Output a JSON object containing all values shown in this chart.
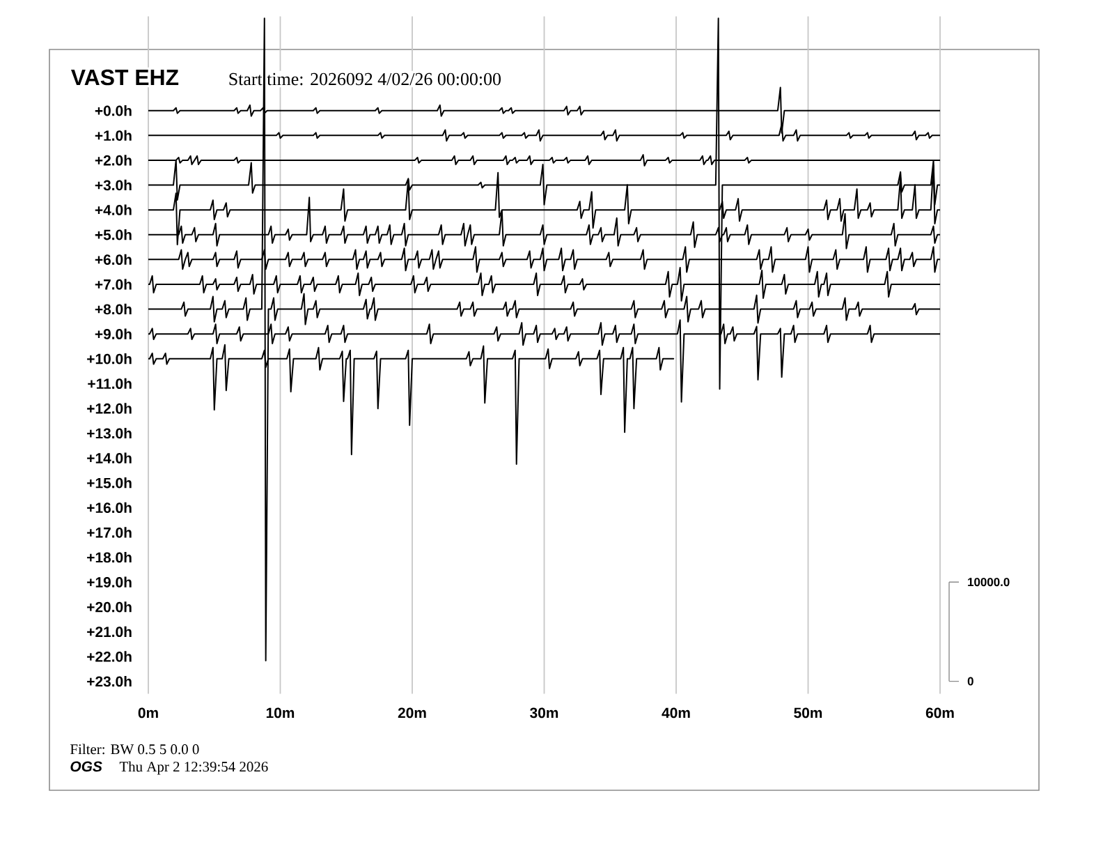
{
  "chart_data": {
    "type": "line",
    "title": "VAST EHZ",
    "subtitle": "Start time: 2026092  4/02/26 00:00:00",
    "annotations": [
      "Filter: BW 0.5 5 0.0 0",
      "OGS",
      "Thu Apr  2 12:39:54 2026"
    ],
    "xlim": [
      0,
      60
    ],
    "xticks": [
      {
        "value": 0,
        "label": "0m"
      },
      {
        "value": 10,
        "label": "10m"
      },
      {
        "value": 20,
        "label": "20m"
      },
      {
        "value": 30,
        "label": "30m"
      },
      {
        "value": 40,
        "label": "40m"
      },
      {
        "value": 50,
        "label": "50m"
      },
      {
        "value": 60,
        "label": "60m"
      }
    ],
    "ylim": [
      23.5,
      -3.8
    ],
    "yticks": [
      {
        "value": 0,
        "label": "+0.0h"
      },
      {
        "value": 1,
        "label": "+1.0h"
      },
      {
        "value": 2,
        "label": "+2.0h"
      },
      {
        "value": 3,
        "label": "+3.0h"
      },
      {
        "value": 4,
        "label": "+4.0h"
      },
      {
        "value": 5,
        "label": "+5.0h"
      },
      {
        "value": 6,
        "label": "+6.0h"
      },
      {
        "value": 7,
        "label": "+7.0h"
      },
      {
        "value": 8,
        "label": "+8.0h"
      },
      {
        "value": 9,
        "label": "+9.0h"
      },
      {
        "value": 10,
        "label": "+10.0h"
      },
      {
        "value": 11,
        "label": "+11.0h"
      },
      {
        "value": 12,
        "label": "+12.0h"
      },
      {
        "value": 13,
        "label": "+13.0h"
      },
      {
        "value": 14,
        "label": "+14.0h"
      },
      {
        "value": 15,
        "label": "+15.0h"
      },
      {
        "value": 16,
        "label": "+16.0h"
      },
      {
        "value": 17,
        "label": "+17.0h"
      },
      {
        "value": 18,
        "label": "+18.0h"
      },
      {
        "value": 19,
        "label": "+19.0h"
      },
      {
        "value": 20,
        "label": "+20.0h"
      },
      {
        "value": 21,
        "label": "+21.0h"
      },
      {
        "value": 22,
        "label": "+22.0h"
      },
      {
        "value": 23,
        "label": "+23.0h"
      }
    ],
    "y2lim": [
      -1250,
      67000
    ],
    "y2ticks": [
      0,
      {
        "value": 10000,
        "label": "10000.0"
      }
    ],
    "grid": "x",
    "marker": "none",
    "line_style": "solid",
    "series": [
      {
        "color": "#000000",
        "x": [
          0,
          1.9,
          2.1,
          2.2,
          2.4,
          6.5,
          6.7,
          6.8,
          7.0,
          7.5,
          7.7,
          7.8,
          8.0,
          8.5,
          8.7,
          8.8,
          9.0,
          12.5,
          12.7,
          12.8,
          13.0,
          17.2,
          17.4,
          17.5,
          17.7,
          21.9,
          22.1,
          22.2,
          22.4,
          26.6,
          26.8,
          26.9,
          27.1,
          27.3,
          27.5,
          27.6,
          27.8,
          31.5,
          31.7,
          31.8,
          32.0,
          32.5,
          32.7,
          32.8,
          33.0,
          47.7,
          47.9,
          48.0,
          48.2,
          60
        ],
        "values": [
          0,
          0,
          -0.11,
          0.11,
          0,
          0,
          -0.11,
          0.11,
          0,
          0,
          -0.22,
          0.22,
          0,
          0,
          -0.11,
          0.11,
          0,
          0,
          -0.11,
          0.11,
          0,
          0,
          -0.11,
          0.11,
          0,
          0,
          -0.22,
          0.22,
          0,
          0,
          -0.11,
          0.11,
          0,
          0,
          -0.11,
          0.11,
          0,
          0,
          -0.17,
          0.17,
          0,
          0,
          -0.17,
          0.17,
          0,
          0,
          -0.93,
          0.9,
          0,
          0
        ]
      },
      {
        "color": "#000000",
        "x": [
          0,
          9.7,
          9.9,
          10.0,
          10.2,
          12.5,
          12.7,
          12.8,
          13.0,
          17.4,
          17.6,
          17.7,
          17.9,
          22.3,
          22.5,
          22.6,
          22.8,
          23.7,
          23.9,
          24.0,
          24.2,
          26.6,
          26.8,
          26.9,
          27.1,
          28.3,
          28.5,
          28.6,
          28.8,
          29.4,
          29.6,
          29.7,
          29.9,
          34.3,
          34.5,
          34.6,
          34.8,
          35.2,
          35.4,
          35.5,
          35.7,
          40.3,
          40.5,
          40.6,
          40.8,
          43.8,
          44.0,
          44.1,
          44.3,
          47.8,
          48.0,
          48.1,
          48.3,
          48.9,
          49.1,
          49.2,
          49.4,
          52.9,
          53.1,
          53.2,
          53.4,
          54.3,
          54.5,
          54.6,
          54.8,
          57.9,
          58.1,
          58.2,
          58.4,
          58.9,
          59.1,
          59.2,
          59.4,
          60
        ],
        "values": [
          1,
          1,
          0.89,
          1.11,
          1,
          1,
          0.89,
          1.11,
          1,
          1,
          0.89,
          1.11,
          1,
          1,
          0.78,
          1.22,
          1,
          1,
          0.89,
          1.11,
          1,
          1,
          0.89,
          1.11,
          1,
          1,
          0.89,
          1.11,
          1,
          1,
          0.78,
          1.22,
          1,
          1,
          0.83,
          1.17,
          1,
          1,
          0.78,
          1.22,
          1,
          1,
          0.89,
          1.11,
          1,
          1,
          0.83,
          1.17,
          1,
          1,
          0.55,
          1.22,
          1,
          1,
          0.78,
          1.22,
          1,
          1,
          0.89,
          1.11,
          1,
          1,
          0.89,
          1.11,
          1,
          1,
          0.83,
          1.17,
          1,
          1,
          0.89,
          1.11,
          1,
          1
        ]
      },
      {
        "color": "#000000",
        "x": [
          0,
          2.1,
          2.3,
          2.4,
          2.6,
          3.0,
          3.2,
          3.3,
          3.5,
          3.5,
          3.7,
          3.8,
          4.0,
          6.5,
          6.7,
          6.8,
          7.0,
          20.2,
          20.4,
          20.5,
          20.7,
          23.0,
          23.2,
          23.3,
          23.5,
          24.4,
          24.6,
          24.7,
          24.9,
          26.9,
          27.1,
          27.2,
          27.4,
          27.6,
          27.8,
          27.9,
          28.1,
          28.7,
          28.9,
          29.0,
          29.2,
          30.4,
          30.6,
          30.7,
          30.9,
          31.5,
          31.7,
          31.8,
          32.0,
          33.1,
          33.3,
          33.4,
          33.6,
          37.3,
          37.5,
          37.6,
          37.8,
          39.2,
          39.4,
          39.5,
          39.7,
          41.8,
          42.0,
          42.1,
          42.3,
          42.4,
          42.6,
          42.7,
          42.9,
          45.2,
          45.4,
          45.5,
          45.7,
          60
        ],
        "values": [
          2,
          2,
          1.89,
          2.11,
          2,
          2,
          1.83,
          2.17,
          2,
          2,
          1.83,
          2.17,
          2,
          2,
          1.89,
          2.11,
          2,
          2,
          1.89,
          2.11,
          2,
          2,
          1.83,
          2.17,
          2,
          2,
          1.83,
          2.17,
          2,
          2,
          1.83,
          2.17,
          2,
          2,
          1.89,
          2.11,
          2,
          2,
          1.83,
          2.17,
          2,
          2,
          1.89,
          2.11,
          2,
          2,
          1.89,
          2.11,
          2,
          2,
          1.83,
          2.17,
          2,
          2,
          1.78,
          2.22,
          2,
          2,
          1.89,
          2.11,
          2,
          2,
          1.83,
          2.17,
          2,
          2,
          1.83,
          2.17,
          2,
          2,
          1.89,
          2.11,
          2,
          2
        ]
      },
      {
        "color": "#000000",
        "x": [
          0,
          1.9,
          2.1,
          2.2,
          2.4,
          7.6,
          7.8,
          7.9,
          8.1,
          19.5,
          19.7,
          19.8,
          20.0,
          25.0,
          25.2,
          25.3,
          25.5,
          29.7,
          29.9,
          30.0,
          30.2,
          43.0,
          43.2,
          43.3,
          43.5,
          56.8,
          57.0,
          57.1,
          57.3,
          59.3,
          59.5,
          59.6,
          59.8,
          60
        ],
        "values": [
          3,
          3,
          2.0,
          3.6,
          3,
          3,
          2.1,
          3.32,
          3,
          3,
          2.74,
          3.2,
          3,
          3,
          2.89,
          3.11,
          3,
          3,
          2.17,
          3.79,
          3,
          3,
          -3.72,
          11.22,
          3,
          3,
          2.47,
          3.28,
          3,
          3,
          2.01,
          3.79,
          3,
          3
        ]
      },
      {
        "color": "#000000",
        "x": [
          0,
          1.9,
          2.1,
          2.2,
          2.4,
          4.7,
          4.9,
          5.0,
          5.2,
          5.7,
          5.9,
          6.0,
          6.2,
          14.6,
          14.8,
          14.9,
          15.1,
          19.5,
          19.7,
          19.8,
          20.0,
          26.3,
          26.5,
          26.6,
          26.8,
          32.5,
          32.7,
          32.8,
          33.0,
          33.4,
          33.6,
          33.7,
          33.9,
          36.1,
          36.3,
          36.4,
          36.6,
          43.3,
          43.5,
          43.6,
          43.8,
          44.5,
          44.7,
          44.8,
          45.0,
          51.2,
          51.4,
          51.5,
          51.7,
          52.2,
          52.4,
          52.5,
          52.7,
          53.5,
          53.7,
          53.8,
          54.0,
          54.5,
          54.7,
          54.8,
          55.0,
          56.8,
          57.0,
          57.1,
          57.3,
          57.9,
          58.1,
          58.2,
          58.4,
          59.3,
          59.5,
          59.6,
          59.8,
          60
        ],
        "values": [
          4,
          4,
          3.33,
          5.4,
          4,
          4,
          3.61,
          4.39,
          4,
          4,
          3.72,
          4.28,
          4,
          4,
          3.16,
          4.45,
          4,
          4,
          2.78,
          4.39,
          4,
          4,
          2.5,
          4.3,
          4,
          4,
          3.66,
          4.34,
          4,
          4,
          3.27,
          4.73,
          4,
          4,
          2.99,
          4.56,
          4,
          4,
          3.66,
          4.34,
          4,
          4,
          3.55,
          4.45,
          4,
          4,
          3.61,
          4.39,
          4,
          4,
          3.55,
          4.45,
          4,
          4,
          3.16,
          4.34,
          4,
          4,
          3.72,
          4.28,
          4,
          4,
          2.71,
          4.34,
          4,
          4,
          2.99,
          4.34,
          4,
          4,
          2.2,
          4.56,
          4,
          4
        ]
      },
      {
        "color": "#000000",
        "x": [
          0,
          2.3,
          2.5,
          2.6,
          2.8,
          3.3,
          3.5,
          3.6,
          3.8,
          4.9,
          5.1,
          5.2,
          5.4,
          9.1,
          9.3,
          9.4,
          9.6,
          10.4,
          10.6,
          10.7,
          10.9,
          12.0,
          12.2,
          12.3,
          12.5,
          13.2,
          13.4,
          13.5,
          13.7,
          14.6,
          14.8,
          14.9,
          15.1,
          16.3,
          16.5,
          16.6,
          16.8,
          17.2,
          17.4,
          17.5,
          17.7,
          18.1,
          18.3,
          18.4,
          18.6,
          19.2,
          19.4,
          19.5,
          19.7,
          22.0,
          22.2,
          22.3,
          22.5,
          23.7,
          23.9,
          24.0,
          24.2,
          24.2,
          24.4,
          24.5,
          24.7,
          26.6,
          26.8,
          26.9,
          27.1,
          29.7,
          29.9,
          30.0,
          30.2,
          33.2,
          33.4,
          33.5,
          33.7,
          34.1,
          34.3,
          34.4,
          34.6,
          35.3,
          35.5,
          35.6,
          35.8,
          36.8,
          37.0,
          37.1,
          37.3,
          41.1,
          41.3,
          41.4,
          41.6,
          43.0,
          43.2,
          43.3,
          43.5,
          43.6,
          43.8,
          43.9,
          44.1,
          45.2,
          45.4,
          45.5,
          45.7,
          48.2,
          48.4,
          48.5,
          48.7,
          49.8,
          50.0,
          50.1,
          50.3,
          52.6,
          52.8,
          52.9,
          53.1,
          56.3,
          56.5,
          56.6,
          56.8,
          59.3,
          59.5,
          59.6,
          59.8,
          60
        ],
        "values": [
          5,
          5,
          4.66,
          5.34,
          5,
          5,
          4.72,
          5.28,
          5,
          5,
          4.55,
          5.45,
          5,
          5,
          4.66,
          5.34,
          5,
          5,
          4.78,
          5.22,
          5,
          5,
          3.5,
          5.28,
          5,
          5,
          4.66,
          5.34,
          5,
          5,
          4.66,
          5.34,
          5,
          5,
          4.66,
          5.34,
          5,
          5,
          4.66,
          5.34,
          5,
          5,
          4.61,
          5.39,
          5,
          5,
          4.55,
          5.45,
          5,
          5,
          4.61,
          5.39,
          5,
          5,
          4.55,
          5.45,
          5,
          5,
          4.61,
          5.39,
          5,
          5,
          4.04,
          5.45,
          5,
          5,
          4.61,
          5.39,
          5,
          5,
          4.61,
          5.39,
          5,
          5,
          4.72,
          5.28,
          5,
          5,
          4.33,
          5.45,
          5,
          5,
          4.72,
          5.28,
          5,
          5,
          4.49,
          5.51,
          5,
          5,
          4.72,
          5.28,
          5,
          5,
          4.72,
          5.28,
          5,
          5,
          4.61,
          5.39,
          5,
          5,
          4.72,
          5.28,
          5,
          5,
          4.78,
          5.22,
          5,
          5,
          4.16,
          5.56,
          5,
          5,
          4.55,
          5.45,
          5,
          5,
          4.66,
          5.34,
          5,
          5
        ]
      },
      {
        "color": "#000000",
        "x": [
          0,
          2.3,
          2.5,
          2.6,
          2.8,
          2.8,
          3.0,
          3.1,
          3.3,
          4.9,
          5.1,
          5.2,
          5.4,
          6.5,
          6.7,
          6.8,
          7.0,
          8.6,
          8.8,
          8.9,
          9.1,
          10.4,
          10.6,
          10.7,
          10.9,
          11.6,
          11.8,
          11.9,
          12.1,
          13.2,
          13.4,
          13.5,
          13.7,
          15.5,
          15.7,
          15.8,
          16.0,
          16.3,
          16.5,
          16.6,
          16.8,
          17.4,
          17.6,
          17.7,
          17.9,
          19.2,
          19.4,
          19.5,
          19.7,
          20.2,
          20.4,
          20.5,
          20.7,
          21.3,
          21.5,
          21.6,
          21.8,
          21.8,
          22.0,
          22.1,
          22.3,
          24.6,
          24.8,
          24.9,
          25.1,
          26.6,
          26.8,
          26.9,
          27.1,
          28.7,
          28.9,
          29.0,
          29.2,
          29.7,
          29.9,
          30.0,
          30.2,
          31.1,
          31.3,
          31.4,
          31.6,
          32.0,
          32.2,
          32.3,
          32.5,
          34.7,
          34.9,
          35.0,
          35.2,
          37.3,
          37.5,
          37.6,
          37.8,
          40.5,
          40.7,
          40.8,
          41.0,
          46.1,
          46.3,
          46.4,
          46.6,
          47.0,
          47.2,
          47.3,
          47.5,
          49.8,
          50.0,
          50.1,
          50.3,
          51.9,
          52.1,
          52.2,
          52.4,
          54.2,
          54.4,
          54.5,
          54.7,
          55.9,
          56.1,
          56.2,
          56.4,
          56.8,
          57.0,
          57.1,
          57.3,
          57.7,
          57.9,
          58.0,
          58.2,
          59.3,
          59.5,
          59.6,
          59.8,
          60
        ],
        "values": [
          6,
          6,
          5.61,
          6.39,
          6,
          6,
          5.72,
          6.28,
          6,
          6,
          5.72,
          6.28,
          6,
          6,
          5.66,
          6.34,
          6,
          6,
          5.61,
          6.39,
          6,
          6,
          5.72,
          6.28,
          6,
          6,
          5.72,
          6.28,
          6,
          6,
          5.72,
          6.28,
          6,
          6,
          5.61,
          6.39,
          6,
          6,
          5.66,
          6.34,
          6,
          6,
          5.72,
          6.28,
          6,
          6,
          5.55,
          6.45,
          6,
          6,
          5.66,
          6.34,
          6,
          6,
          5.61,
          6.39,
          6,
          6,
          5.66,
          6.34,
          6,
          6,
          5.49,
          6.51,
          6,
          6,
          5.72,
          6.28,
          6,
          6,
          5.66,
          6.34,
          6,
          6,
          5.55,
          6.45,
          6,
          6,
          5.55,
          6.45,
          6,
          6,
          5.61,
          6.39,
          6,
          6,
          5.72,
          6.28,
          6,
          6,
          5.61,
          6.39,
          6,
          6,
          5.49,
          6.51,
          6,
          6,
          5.61,
          6.39,
          6,
          6,
          5.49,
          6.51,
          6,
          6,
          5.49,
          6.51,
          6,
          6,
          5.61,
          6.39,
          6,
          6,
          5.49,
          6.51,
          6,
          6,
          5.55,
          6.45,
          6,
          6,
          5.55,
          6.45,
          6,
          6,
          5.72,
          6.28,
          6,
          6,
          5.49,
          6.51,
          6,
          6
        ]
      },
      {
        "color": "#000000",
        "x": [
          0,
          0.1,
          0.3,
          0.4,
          0.6,
          3.9,
          4.1,
          4.2,
          4.4,
          4.9,
          5.1,
          5.2,
          5.4,
          6.5,
          6.7,
          6.8,
          7.0,
          7.7,
          7.9,
          8.0,
          8.2,
          9.5,
          9.7,
          9.8,
          10.0,
          11.3,
          11.5,
          11.6,
          11.8,
          12.3,
          12.5,
          12.6,
          12.8,
          14.2,
          14.4,
          14.5,
          14.7,
          15.7,
          15.9,
          16.0,
          16.2,
          16.7,
          16.9,
          17.0,
          17.2,
          19.9,
          20.1,
          20.2,
          20.4,
          20.9,
          21.1,
          21.2,
          21.4,
          25.0,
          25.2,
          25.3,
          25.5,
          25.8,
          26.0,
          26.1,
          26.3,
          29.2,
          29.4,
          29.5,
          29.7,
          31.3,
          31.5,
          31.6,
          31.8,
          32.7,
          32.9,
          33.0,
          33.2,
          39.2,
          39.4,
          39.5,
          39.7,
          40.1,
          40.3,
          40.4,
          40.6,
          46.3,
          46.5,
          46.6,
          46.8,
          48.0,
          48.2,
          48.3,
          48.5,
          50.5,
          50.7,
          50.8,
          51.0,
          51.2,
          51.4,
          51.5,
          51.7,
          55.8,
          56.0,
          56.1,
          56.3,
          60
        ],
        "values": [
          7,
          7,
          6.66,
          7.34,
          7,
          7,
          6.66,
          7.34,
          7,
          7,
          6.78,
          7.22,
          7,
          7,
          6.72,
          7.28,
          7,
          7,
          6.61,
          7.39,
          7,
          7,
          6.66,
          7.34,
          7,
          7,
          6.66,
          7.34,
          7,
          7,
          6.72,
          7.28,
          7,
          7,
          6.66,
          7.34,
          7,
          7,
          6.55,
          7.45,
          7,
          7,
          6.72,
          7.28,
          7,
          7,
          6.66,
          7.34,
          7,
          7,
          6.72,
          7.28,
          7,
          7,
          6.55,
          7.45,
          7,
          7,
          6.66,
          7.34,
          7,
          7,
          6.55,
          7.45,
          7,
          7,
          6.66,
          7.34,
          7,
          7,
          6.78,
          7.22,
          7,
          7,
          6.49,
          7.51,
          7,
          7,
          6.33,
          7.67,
          7,
          7,
          6.44,
          7.56,
          7,
          7,
          6.61,
          7.39,
          7,
          7,
          6.49,
          7.51,
          7,
          7,
          6.55,
          7.45,
          7,
          7,
          6.49,
          7.51,
          7,
          7
        ]
      },
      {
        "color": "#000000",
        "x": [
          0,
          2.5,
          2.7,
          2.8,
          3.0,
          4.7,
          4.9,
          5.0,
          5.2,
          5.6,
          5.8,
          5.9,
          6.1,
          7.2,
          7.4,
          7.5,
          7.7,
          8.6,
          8.8,
          8.9,
          9.1,
          9.3,
          9.5,
          9.6,
          9.8,
          11.6,
          11.8,
          11.9,
          12.1,
          12.5,
          12.7,
          12.8,
          13.0,
          16.3,
          16.5,
          16.6,
          16.8,
          16.9,
          17.1,
          17.2,
          17.4,
          23.4,
          23.6,
          23.7,
          23.9,
          24.4,
          24.6,
          24.7,
          24.9,
          26.9,
          27.1,
          27.2,
          27.4,
          27.6,
          27.8,
          27.9,
          28.1,
          32.0,
          32.2,
          32.3,
          32.5,
          36.6,
          36.8,
          36.9,
          37.1,
          38.9,
          39.1,
          39.2,
          39.4,
          40.6,
          40.8,
          40.9,
          41.1,
          41.7,
          41.9,
          42.0,
          42.2,
          45.9,
          46.1,
          46.2,
          46.4,
          48.9,
          49.1,
          49.2,
          49.4,
          50.1,
          50.3,
          50.4,
          50.6,
          52.6,
          52.8,
          52.9,
          53.1,
          53.6,
          53.8,
          53.9,
          54.1,
          57.9,
          58.1,
          58.2,
          58.4,
          60
        ],
        "values": [
          8,
          8,
          7.72,
          8.28,
          8,
          8,
          7.49,
          8.51,
          8,
          8,
          7.66,
          8.34,
          8,
          8,
          7.55,
          8.45,
          8,
          8,
          -3.72,
          22.17,
          8,
          8,
          7.55,
          8.45,
          8,
          8,
          7.38,
          8.62,
          8,
          8,
          7.66,
          8.34,
          8,
          8,
          7.61,
          8.39,
          8,
          8,
          7.55,
          8.45,
          8,
          8,
          7.72,
          8.28,
          8,
          8,
          7.72,
          8.28,
          8,
          8,
          7.72,
          8.28,
          8,
          8,
          7.66,
          8.34,
          8,
          8,
          7.72,
          8.28,
          8,
          8,
          7.66,
          8.34,
          8,
          8,
          7.66,
          8.34,
          8,
          8,
          7.49,
          8.51,
          8,
          8,
          7.66,
          8.34,
          8,
          8,
          7.44,
          8.56,
          8,
          8,
          7.66,
          8.34,
          8,
          8,
          7.72,
          8.28,
          8,
          8,
          7.55,
          8.45,
          8,
          8,
          7.72,
          8.28,
          8,
          8,
          7.78,
          8.22,
          8,
          8
        ]
      },
      {
        "color": "#000000",
        "x": [
          0,
          0.1,
          0.3,
          0.4,
          0.6,
          3.0,
          3.2,
          3.3,
          3.5,
          4.9,
          5.1,
          5.2,
          5.4,
          6.7,
          6.9,
          7.0,
          7.2,
          9.1,
          9.3,
          9.4,
          9.6,
          10.4,
          10.6,
          10.7,
          10.9,
          13.4,
          13.6,
          13.7,
          13.9,
          14.6,
          14.8,
          14.9,
          15.1,
          21.1,
          21.3,
          21.4,
          21.6,
          26.2,
          26.4,
          26.5,
          26.7,
          28.1,
          28.3,
          28.4,
          28.6,
          29.2,
          29.4,
          29.5,
          29.7,
          30.6,
          30.8,
          30.9,
          31.1,
          31.5,
          31.7,
          31.8,
          32.0,
          34.1,
          34.3,
          34.4,
          34.6,
          35.2,
          35.4,
          35.5,
          35.7,
          36.6,
          36.8,
          36.9,
          37.1,
          40.1,
          40.3,
          40.4,
          40.6,
          43.4,
          43.6,
          43.7,
          43.9,
          44.1,
          44.3,
          44.4,
          44.6,
          45.9,
          46.1,
          46.2,
          46.4,
          47.7,
          47.9,
          48.0,
          48.2,
          48.7,
          48.9,
          49.0,
          49.2,
          51.2,
          51.4,
          51.5,
          51.7,
          54.5,
          54.7,
          54.8,
          55.0,
          60
        ],
        "values": [
          9,
          9,
          8.78,
          9.22,
          9,
          9,
          8.78,
          9.22,
          9,
          9,
          8.61,
          9.39,
          9,
          9,
          8.72,
          9.28,
          9,
          9,
          8.61,
          9.39,
          9,
          9,
          8.72,
          9.28,
          9,
          9,
          8.66,
          9.34,
          9,
          9,
          8.66,
          9.34,
          9,
          9,
          8.61,
          9.39,
          9,
          9,
          8.72,
          9.28,
          9,
          9,
          8.55,
          9.45,
          9,
          9,
          8.66,
          9.34,
          9,
          9,
          8.78,
          9.22,
          9,
          9,
          8.72,
          9.28,
          9,
          9,
          8.55,
          9.45,
          9,
          9,
          8.66,
          9.34,
          9,
          9,
          8.61,
          9.39,
          9,
          9,
          8.44,
          11.74,
          9,
          9,
          8.61,
          9.39,
          9,
          9,
          8.72,
          9.28,
          9,
          9,
          8.7,
          10.85,
          9,
          9,
          8.78,
          10.74,
          9,
          9,
          8.66,
          9.34,
          9,
          9,
          8.66,
          9.34,
          9,
          9,
          8.66,
          9.34,
          9,
          9
        ]
      },
      {
        "color": "#000000",
        "x": [
          0,
          0.1,
          0.3,
          0.4,
          0.6,
          1.1,
          1.3,
          1.4,
          1.6,
          4.7,
          4.9,
          5.0,
          5.2,
          5.6,
          5.8,
          5.9,
          6.1,
          8.6,
          8.8,
          8.9,
          9.1,
          10.5,
          10.7,
          10.8,
          11.0,
          12.7,
          12.9,
          13.0,
          13.2,
          14.5,
          14.7,
          14.8,
          15.0,
          15.1,
          15.3,
          15.4,
          15.6,
          17.1,
          17.3,
          17.4,
          17.6,
          19.5,
          19.7,
          19.8,
          20.0,
          24.1,
          24.3,
          24.4,
          24.6,
          25.2,
          25.4,
          25.5,
          25.7,
          27.6,
          27.8,
          27.9,
          28.1,
          30.1,
          30.3,
          30.4,
          30.6,
          32.4,
          32.6,
          32.7,
          32.9,
          34.0,
          34.2,
          34.3,
          34.5,
          35.8,
          36.0,
          36.1,
          36.3,
          36.5,
          36.7,
          36.8,
          37.0,
          38.5,
          38.7,
          38.8,
          39.0,
          39.8
        ],
        "values": [
          10,
          10,
          9.78,
          10.22,
          10,
          10,
          9.78,
          10.22,
          10,
          10,
          9.55,
          12.06,
          10,
          10,
          9.44,
          11.28,
          10,
          10,
          9.66,
          10.34,
          10,
          10,
          9.61,
          11.33,
          10,
          10,
          9.55,
          10.45,
          10,
          10,
          9.7,
          11.72,
          10,
          10,
          9.66,
          13.86,
          10,
          10,
          9.7,
          12.01,
          10,
          10,
          9.66,
          12.68,
          10,
          10,
          9.72,
          10.28,
          10,
          10,
          9.49,
          11.78,
          10,
          10,
          9.66,
          14.25,
          10,
          10,
          9.61,
          10.39,
          10,
          10,
          9.72,
          10.28,
          10,
          10,
          9.66,
          11.44,
          10,
          10,
          9.55,
          12.96,
          10,
          10,
          9.55,
          12.01,
          10,
          10,
          9.55,
          10.45,
          10,
          10
        ]
      }
    ]
  }
}
